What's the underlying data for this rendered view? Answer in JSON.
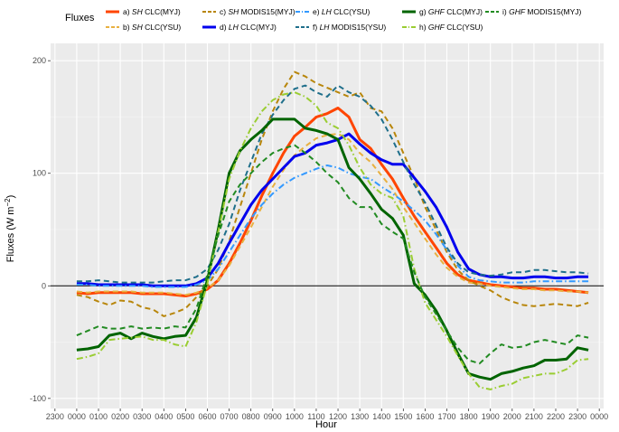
{
  "chart_data": {
    "type": "line",
    "title": "",
    "xlabel": "Hour",
    "ylabel": "Fluxes (W m⁻²)",
    "ylabel_main": "Fluxes (W  m",
    "ylabel_sup": "−2",
    "ylabel_close": ")",
    "ylim": [
      -100,
      200
    ],
    "y_ticks": [
      -100,
      0,
      100,
      200
    ],
    "y_tick_labels": [
      "-100",
      "0",
      "100",
      "200"
    ],
    "x_tick_labels": [
      "2300",
      "0000",
      "0100",
      "0200",
      "0300",
      "0400",
      "0500",
      "0600",
      "0700",
      "0800",
      "0900",
      "1000",
      "1100",
      "1200",
      "1300",
      "1400",
      "1500",
      "1600",
      "1700",
      "1800",
      "1900",
      "2000",
      "2100",
      "2200",
      "2300",
      "0000"
    ],
    "x_tick_positions": [
      -1,
      0,
      1,
      2,
      3,
      4,
      5,
      6,
      7,
      8,
      9,
      10,
      11,
      12,
      13,
      14,
      15,
      16,
      17,
      18,
      19,
      20,
      21,
      22,
      23,
      24
    ],
    "xlim": [
      -1.2,
      24.2
    ],
    "zero_line": true,
    "legend": {
      "title": "Fluxes",
      "position": "top"
    },
    "x": [
      0,
      0.5,
      1,
      1.5,
      2,
      2.5,
      3,
      3.5,
      4,
      4.5,
      5,
      5.5,
      6,
      6.5,
      7,
      7.5,
      8,
      8.5,
      9,
      9.5,
      10,
      10.5,
      11,
      11.5,
      12,
      12.5,
      13,
      13.5,
      14,
      14.5,
      15,
      15.5,
      16,
      16.5,
      17,
      17.5,
      18,
      18.5,
      19,
      19.5,
      20,
      20.5,
      21,
      21.5,
      22,
      22.5,
      23,
      23.5
    ],
    "series": [
      {
        "id": "a",
        "prefix": "a) ",
        "var": "SH",
        "suffix": " CLC(MYJ)",
        "color": "#ff4500",
        "dash": "solid",
        "width": 3,
        "values": [
          -6,
          -7,
          -6,
          -6,
          -6,
          -6,
          -7,
          -7,
          -7,
          -8,
          -9,
          -7,
          -3,
          5,
          20,
          38,
          58,
          80,
          100,
          118,
          133,
          141,
          150,
          153,
          158,
          150,
          130,
          122,
          108,
          95,
          78,
          62,
          48,
          34,
          20,
          10,
          5,
          3,
          1,
          0,
          -1,
          -2,
          -2,
          -3,
          -3,
          -4,
          -5,
          -6
        ]
      },
      {
        "id": "b",
        "prefix": "b) ",
        "var": "SH",
        "suffix": " CLC(YSU)",
        "color": "#e8b040",
        "dash": "dashed",
        "width": 2,
        "values": [
          -5,
          -6,
          -5,
          -5,
          -5,
          -5,
          -6,
          -6,
          -6,
          -7,
          -8,
          -6,
          -2,
          5,
          18,
          35,
          52,
          70,
          88,
          103,
          116,
          124,
          131,
          134,
          135,
          130,
          118,
          110,
          98,
          86,
          70,
          56,
          42,
          28,
          16,
          8,
          3,
          2,
          0,
          -1,
          -2,
          -3,
          -3,
          -4,
          -4,
          -5,
          -5,
          -6
        ]
      },
      {
        "id": "c",
        "prefix": "c) ",
        "var": "SH",
        "suffix": " MODIS15(MYJ)",
        "color": "#b8860b",
        "dash": "dashed",
        "width": 2,
        "values": [
          -8,
          -10,
          -14,
          -17,
          -13,
          -14,
          -19,
          -21,
          -27,
          -24,
          -20,
          -10,
          0,
          15,
          40,
          70,
          100,
          130,
          155,
          175,
          190,
          186,
          180,
          176,
          172,
          168,
          172,
          158,
          155,
          140,
          118,
          96,
          70,
          50,
          30,
          14,
          5,
          0,
          -4,
          -10,
          -14,
          -17,
          -18,
          -17,
          -16,
          -17,
          -18,
          -15
        ]
      },
      {
        "id": "d",
        "prefix": "d) ",
        "var": "LH",
        "suffix": " CLC(MYJ)",
        "color": "#0000ee",
        "dash": "solid",
        "width": 3,
        "values": [
          2,
          2,
          1,
          1,
          1,
          1,
          1,
          0,
          0,
          0,
          0,
          2,
          7,
          20,
          38,
          55,
          72,
          85,
          95,
          105,
          115,
          118,
          125,
          127,
          130,
          135,
          126,
          118,
          112,
          108,
          108,
          96,
          84,
          70,
          52,
          30,
          15,
          10,
          8,
          8,
          7,
          7,
          8,
          8,
          7,
          7,
          8,
          8
        ]
      },
      {
        "id": "e",
        "prefix": "e) ",
        "var": "LH",
        "suffix": " CLC(YSU)",
        "color": "#3399ff",
        "dash": "dashdot",
        "width": 2,
        "values": [
          1,
          1,
          0,
          0,
          0,
          0,
          0,
          -1,
          -1,
          -1,
          -1,
          1,
          5,
          15,
          30,
          45,
          60,
          72,
          82,
          90,
          96,
          100,
          104,
          107,
          105,
          100,
          97,
          95,
          88,
          82,
          75,
          67,
          58,
          46,
          32,
          18,
          8,
          5,
          4,
          3,
          3,
          3,
          4,
          4,
          4,
          4,
          4,
          4
        ]
      },
      {
        "id": "f",
        "prefix": "f) ",
        "var": "LH",
        "suffix": " MODIS15(YSU)",
        "color": "#1f6f8b",
        "dash": "dashed",
        "width": 2,
        "values": [
          4,
          4,
          5,
          4,
          3,
          3,
          3,
          3,
          4,
          5,
          5,
          8,
          15,
          32,
          55,
          85,
          110,
          135,
          152,
          165,
          175,
          178,
          172,
          168,
          178,
          172,
          168,
          160,
          148,
          130,
          110,
          90,
          74,
          54,
          34,
          20,
          12,
          10,
          9,
          10,
          12,
          12,
          14,
          14,
          13,
          12,
          12,
          11
        ]
      },
      {
        "id": "g",
        "prefix": "g) ",
        "var": "GHF",
        "suffix": " CLC(MYJ)",
        "color": "#006400",
        "dash": "solid",
        "width": 3,
        "values": [
          -57,
          -56,
          -54,
          -44,
          -42,
          -47,
          -42,
          -45,
          -47,
          -45,
          -44,
          -28,
          5,
          50,
          100,
          120,
          130,
          138,
          148,
          148,
          148,
          140,
          138,
          135,
          130,
          105,
          95,
          82,
          68,
          60,
          45,
          2,
          -8,
          -22,
          -40,
          -60,
          -78,
          -81,
          -83,
          -78,
          -76,
          -73,
          -71,
          -66,
          -66,
          -65,
          -55,
          -57
        ]
      },
      {
        "id": "h",
        "prefix": "h) ",
        "var": "GHF",
        "suffix": " CLC(YSU)",
        "color": "#9acd32",
        "dash": "dashdot",
        "width": 2,
        "values": [
          -65,
          -63,
          -60,
          -48,
          -47,
          -46,
          -45,
          -48,
          -48,
          -52,
          -54,
          -32,
          2,
          48,
          95,
          120,
          140,
          155,
          165,
          170,
          172,
          168,
          160,
          145,
          140,
          125,
          105,
          90,
          82,
          78,
          62,
          15,
          -15,
          -30,
          -45,
          -62,
          -78,
          -90,
          -92,
          -89,
          -87,
          -82,
          -80,
          -78,
          -78,
          -74,
          -66,
          -65
        ]
      },
      {
        "id": "i",
        "prefix": "i) ",
        "var": "GHF",
        "suffix": " MODIS15(MYJ)",
        "color": "#228b22",
        "dash": "dashed",
        "width": 2,
        "values": [
          -44,
          -40,
          -36,
          -38,
          -38,
          -36,
          -38,
          -37,
          -38,
          -36,
          -37,
          -20,
          10,
          45,
          75,
          90,
          100,
          110,
          118,
          122,
          125,
          118,
          110,
          100,
          92,
          78,
          70,
          70,
          55,
          48,
          42,
          12,
          -10,
          -25,
          -40,
          -55,
          -66,
          -69,
          -60,
          -52,
          -55,
          -54,
          -50,
          -48,
          -50,
          -52,
          -44,
          -46
        ]
      }
    ]
  }
}
